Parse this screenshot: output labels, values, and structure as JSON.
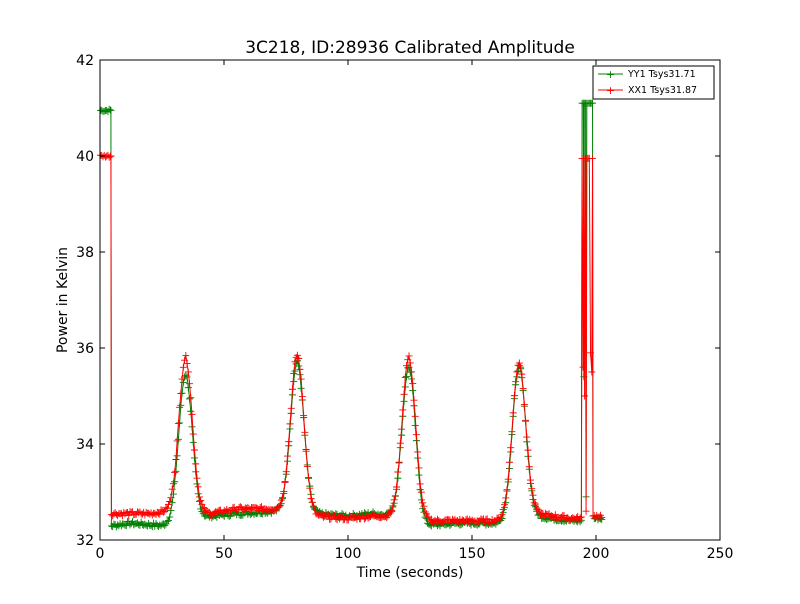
{
  "chart_data": {
    "type": "line",
    "title": "3C218, ID:28936 Calibrated Amplitude",
    "xlabel": "Time (seconds)",
    "ylabel": "Power in Kelvin",
    "xlim": [
      0,
      250
    ],
    "ylim": [
      32,
      42
    ],
    "xticks": [
      0,
      50,
      100,
      150,
      200,
      250
    ],
    "yticks": [
      32,
      34,
      36,
      38,
      40,
      42
    ],
    "grid": false,
    "legend_position": "top-right",
    "marker": "+",
    "series": [
      {
        "name": "YY1 Tsys31.71",
        "color": "#008000",
        "baseline_segments": [
          [
            5,
            32.3
          ],
          [
            12,
            32.35
          ],
          [
            25,
            32.3
          ],
          [
            45,
            32.5
          ],
          [
            55,
            32.55
          ],
          [
            70,
            32.6
          ],
          [
            85,
            32.55
          ],
          [
            100,
            32.5
          ],
          [
            110,
            32.55
          ],
          [
            120,
            32.5
          ],
          [
            130,
            32.3
          ],
          [
            145,
            32.35
          ],
          [
            160,
            32.35
          ],
          [
            175,
            32.5
          ],
          [
            190,
            32.4
          ],
          [
            194,
            32.4
          ]
        ],
        "peaks": [
          {
            "t": 34.5,
            "amp": 35.45
          },
          {
            "t": 79.5,
            "amp": 35.7
          },
          {
            "t": 124.5,
            "amp": 35.6
          },
          {
            "t": 169,
            "amp": 35.6
          }
        ],
        "start_level": 40.95,
        "end_spike_level": 41.1,
        "end_level": 32.45
      },
      {
        "name": "XX1 Tsys31.87",
        "color": "#ff0000",
        "baseline_segments": [
          [
            5,
            32.55
          ],
          [
            20,
            32.55
          ],
          [
            27,
            32.6
          ],
          [
            45,
            32.55
          ],
          [
            55,
            32.65
          ],
          [
            70,
            32.65
          ],
          [
            85,
            32.5
          ],
          [
            100,
            32.45
          ],
          [
            110,
            32.5
          ],
          [
            120,
            32.5
          ],
          [
            130,
            32.4
          ],
          [
            145,
            32.4
          ],
          [
            160,
            32.4
          ],
          [
            175,
            32.55
          ],
          [
            190,
            32.45
          ],
          [
            194,
            32.45
          ]
        ],
        "peaks": [
          {
            "t": 34.5,
            "amp": 35.8
          },
          {
            "t": 79.5,
            "amp": 35.85
          },
          {
            "t": 124.5,
            "amp": 35.8
          },
          {
            "t": 169,
            "amp": 35.7
          }
        ],
        "start_level": 40.0,
        "end_spike_level": 39.95,
        "end_level": 32.5
      }
    ]
  }
}
